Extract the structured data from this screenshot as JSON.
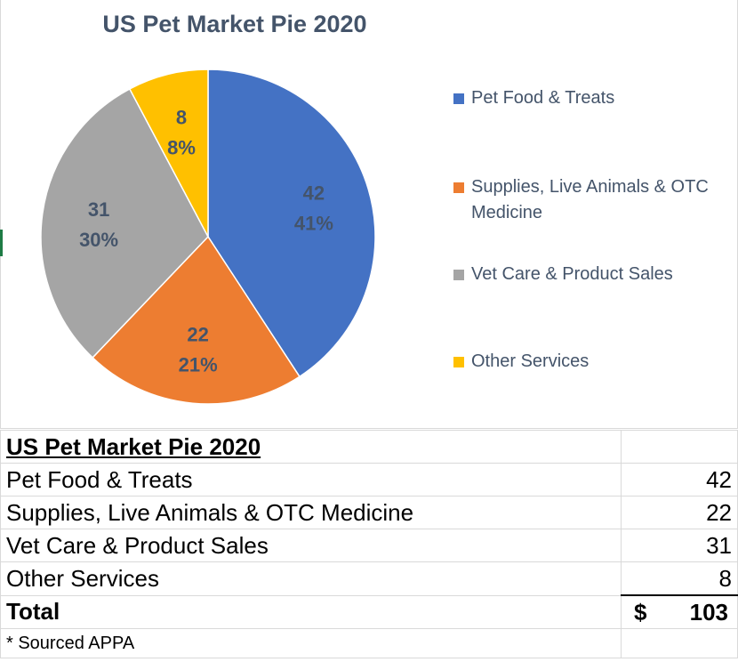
{
  "chart_data": {
    "type": "pie",
    "title": "US Pet Market Pie 2020",
    "categories": [
      "Pet Food & Treats",
      "Supplies, Live Animals & OTC Medicine",
      "Vet Care & Product Sales",
      "Other Services"
    ],
    "values": [
      42,
      22,
      31,
      8
    ],
    "percent_labels": [
      "41%",
      "21%",
      "30%",
      "8%"
    ],
    "colors": [
      "#4472c4",
      "#ed7d31",
      "#a5a5a5",
      "#ffc000"
    ],
    "legend_position": "right"
  },
  "table": {
    "title": "US Pet Market Pie 2020",
    "rows": [
      {
        "label": "Pet Food & Treats",
        "value": "42"
      },
      {
        "label": "Supplies, Live Animals & OTC Medicine",
        "value": "22"
      },
      {
        "label": "Vet Care & Product Sales",
        "value": "31"
      },
      {
        "label": "Other Services",
        "value": "8"
      }
    ],
    "total_label": "Total",
    "total_currency": "$",
    "total_value": "103",
    "note": "* Sourced APPA"
  }
}
